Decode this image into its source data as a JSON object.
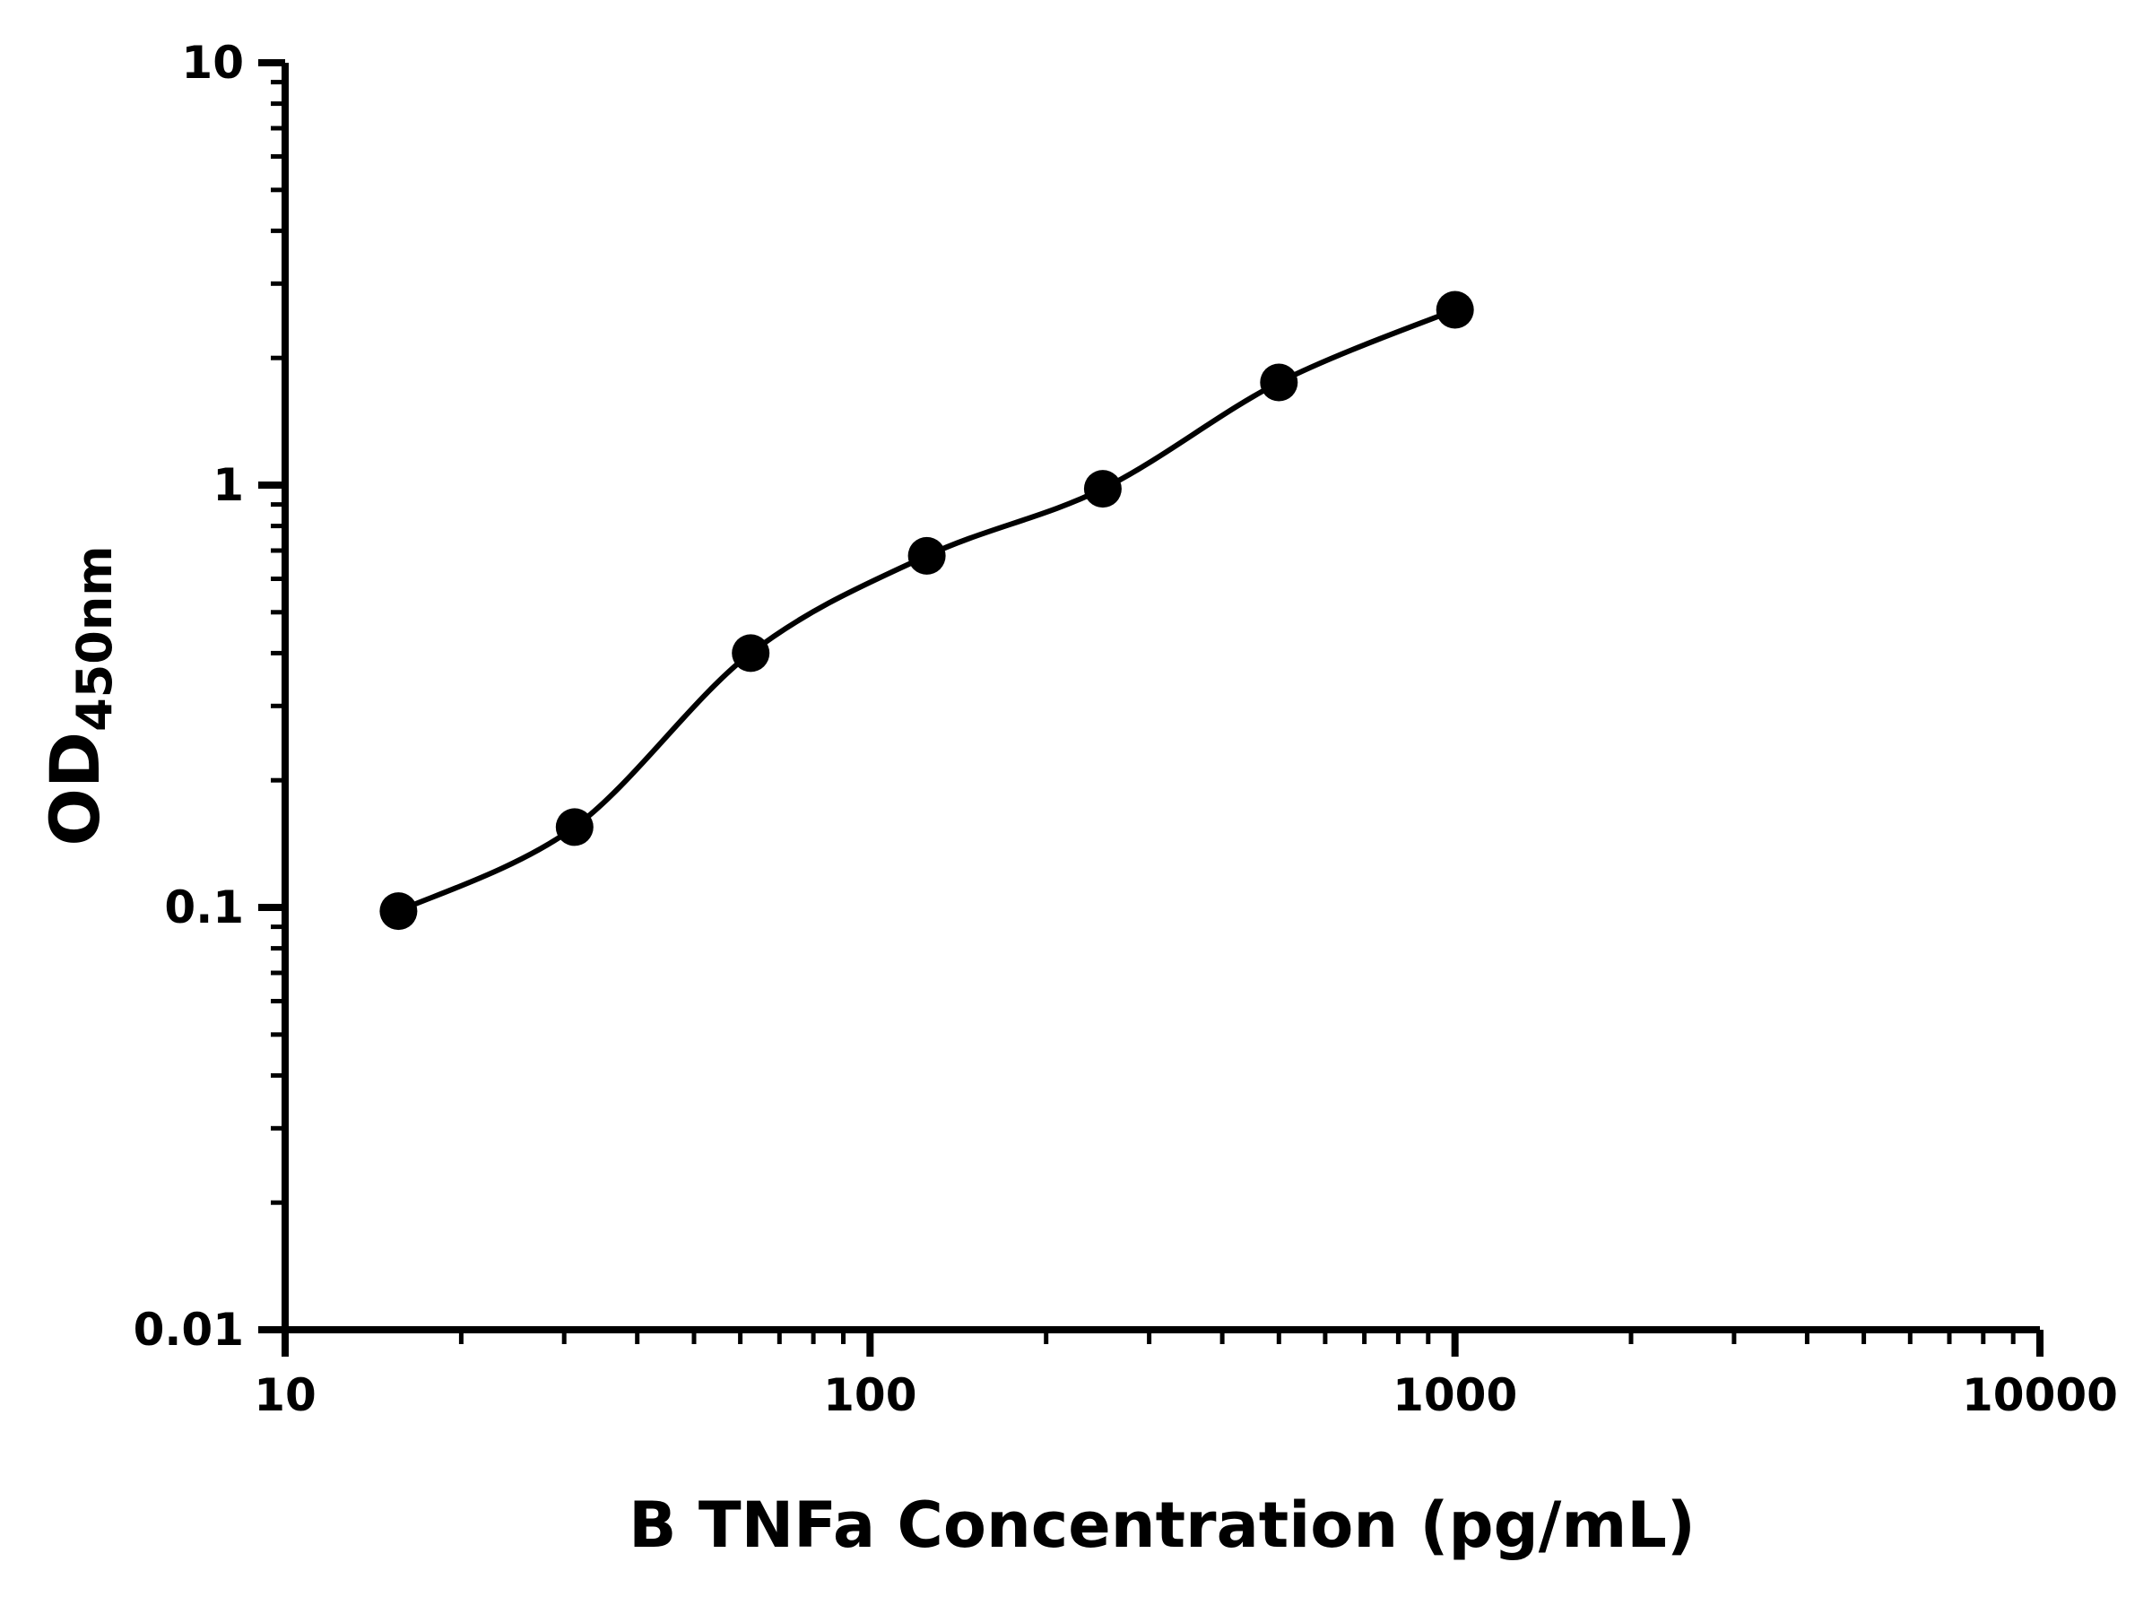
{
  "chart_data": {
    "type": "scatter",
    "title": "",
    "xlabel": "B TNFa Concentration (pg/mL)",
    "ylabel_main": "OD",
    "ylabel_sub": "450nm",
    "x_scale": "log",
    "y_scale": "log",
    "xlim": [
      10,
      10000
    ],
    "ylim": [
      0.01,
      10
    ],
    "grid": false,
    "legend": false,
    "x_ticks": [
      {
        "value": 10,
        "label": "10"
      },
      {
        "value": 100,
        "label": "100"
      },
      {
        "value": 1000,
        "label": "1000"
      },
      {
        "value": 10000,
        "label": "10000"
      }
    ],
    "y_ticks": [
      {
        "value": 10,
        "label": "10"
      },
      {
        "value": 1,
        "label": "1"
      },
      {
        "value": 0.1,
        "label": "0.1"
      },
      {
        "value": 0.01,
        "label": "0.01"
      }
    ],
    "points": [
      {
        "x": 15.625,
        "y": 0.098
      },
      {
        "x": 31.25,
        "y": 0.155
      },
      {
        "x": 62.5,
        "y": 0.4
      },
      {
        "x": 125,
        "y": 0.68
      },
      {
        "x": 250,
        "y": 0.98
      },
      {
        "x": 500,
        "y": 1.75
      },
      {
        "x": 1000,
        "y": 2.6
      }
    ],
    "curve": "smooth fit through points",
    "colors": {
      "axis": "#000000",
      "line": "#000000",
      "marker": "#000000",
      "background": "#ffffff"
    }
  }
}
